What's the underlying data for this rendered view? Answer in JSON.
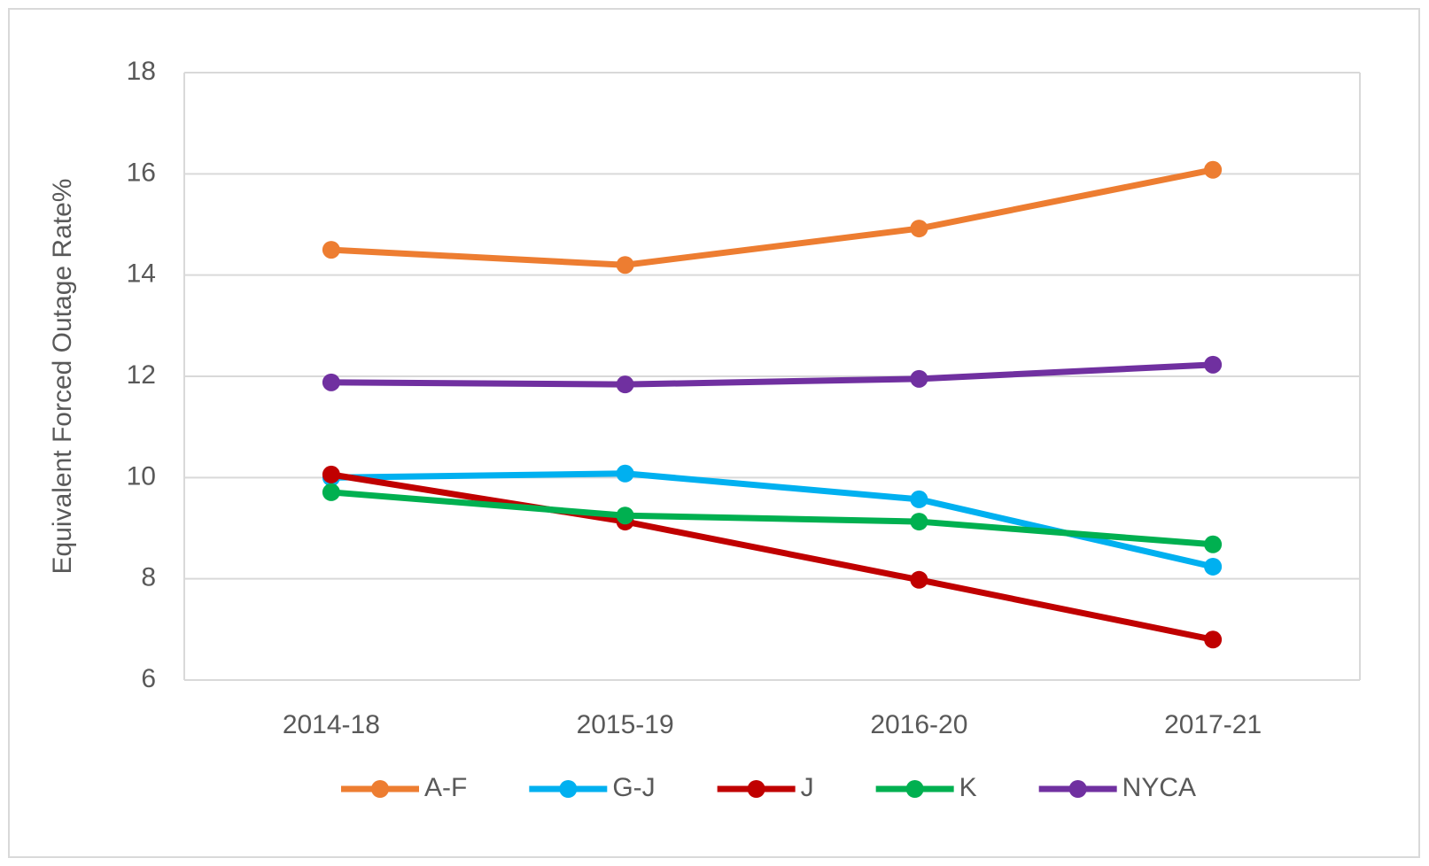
{
  "chart_data": {
    "type": "line",
    "y_label": "Equivalent Forced Outage Rate%",
    "categories": [
      "2014-18",
      "2015-19",
      "2016-20",
      "2017-21"
    ],
    "series": [
      {
        "name": "A-F",
        "color": "#ed7d31",
        "values": [
          14.5,
          14.2,
          14.92,
          16.08
        ]
      },
      {
        "name": "G-J",
        "color": "#00b0f0",
        "values": [
          10.0,
          10.08,
          9.57,
          8.24
        ]
      },
      {
        "name": "J",
        "color": "#c00000",
        "values": [
          10.06,
          9.13,
          7.98,
          6.8
        ]
      },
      {
        "name": "K",
        "color": "#00b050",
        "values": [
          9.71,
          9.25,
          9.13,
          8.68
        ]
      },
      {
        "name": "NYCA",
        "color": "#7030a0",
        "values": [
          11.88,
          11.84,
          11.95,
          12.23
        ]
      }
    ],
    "ylim": [
      6,
      18
    ],
    "yticks": [
      6,
      8,
      10,
      12,
      14,
      16,
      18
    ],
    "grid": true,
    "legend": "bottom"
  }
}
